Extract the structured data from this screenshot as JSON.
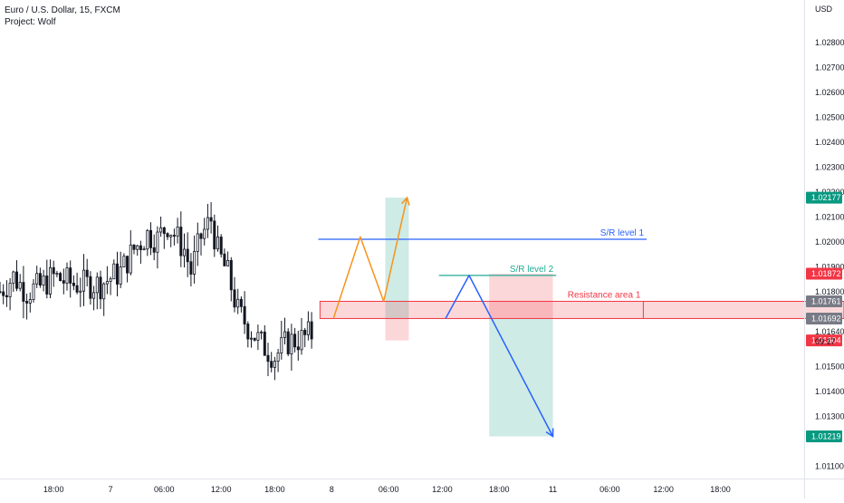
{
  "header": {
    "symbol_line": "Euro / U.S. Dollar, 15, FXCM",
    "project_line": "Project: Wolf",
    "currency": "USD"
  },
  "chart_data": {
    "type": "candlestick",
    "y_axis": {
      "ylim": [
        1.0105,
        1.0297
      ],
      "ticks": [
        "1.02800",
        "1.02700",
        "1.02600",
        "1.02500",
        "1.02400",
        "1.02300",
        "1.02200",
        "1.02100",
        "1.02000",
        "1.01900",
        "1.01800",
        "1.01640",
        "1.01500",
        "1.01400",
        "1.01300",
        "1.01100"
      ],
      "tick_values": [
        1.028,
        1.027,
        1.026,
        1.025,
        1.024,
        1.023,
        1.022,
        1.021,
        1.02,
        1.019,
        1.018,
        1.0164,
        1.015,
        1.014,
        1.013,
        1.011
      ]
    },
    "x_axis": {
      "xlim": [
        0,
        240
      ],
      "ticks": [
        "18:00",
        "7",
        "06:00",
        "12:00",
        "18:00",
        "8",
        "06:00",
        "12:00",
        "18:00",
        "11",
        "06:00",
        "12:00",
        "18:00"
      ],
      "tick_positions": [
        16,
        33,
        49,
        66,
        82,
        99,
        116,
        132,
        149,
        165,
        182,
        198,
        215
      ]
    },
    "price_badges": [
      {
        "label": "1.02177",
        "value": 1.02177,
        "color": "#089981"
      },
      {
        "label": "1.01872",
        "value": 1.01872,
        "color": "#f23645"
      },
      {
        "label": "1.01761",
        "value": 1.01761,
        "color": "#787b86"
      },
      {
        "label": "1.01692",
        "value": 1.01692,
        "color": "#787b86"
      },
      {
        "label": "1.01604",
        "value": 1.01604,
        "color": "#f23645"
      },
      {
        "label": "1.01219",
        "value": 1.01219,
        "color": "#089981"
      }
    ],
    "countdown": {
      "label": "09:17",
      "value": 1.0164
    },
    "annotations": {
      "sr1": {
        "label": "S/R level 1",
        "value": 1.0201,
        "x_range": [
          95,
          193
        ],
        "color": "#2962ff"
      },
      "sr2": {
        "label": "S/R level 2",
        "value": 1.01865,
        "x_range": [
          131,
          166
        ],
        "color": "#22ab94"
      },
      "resistance": {
        "label": "Resistance area 1",
        "value_range": [
          1.01692,
          1.01761
        ],
        "x_range": [
          95.5,
          240
        ],
        "divider_x": 192,
        "color": "#f23645"
      },
      "long_position": {
        "x_range": [
          115,
          122
        ],
        "entry": 1.01692,
        "target": 1.02177,
        "stop": 1.01604
      },
      "short_position": {
        "x_range": [
          146,
          165
        ],
        "entry": 1.01692,
        "target": 1.01219,
        "stop": 1.01872
      },
      "orange_path": [
        [
          99.5,
          1.01692
        ],
        [
          107.5,
          1.0202
        ],
        [
          114.5,
          1.01761
        ],
        [
          121.5,
          1.02177
        ]
      ],
      "blue_path": [
        [
          133,
          1.01692
        ],
        [
          140,
          1.01865
        ],
        [
          165,
          1.01219
        ]
      ]
    },
    "candles": []
  }
}
